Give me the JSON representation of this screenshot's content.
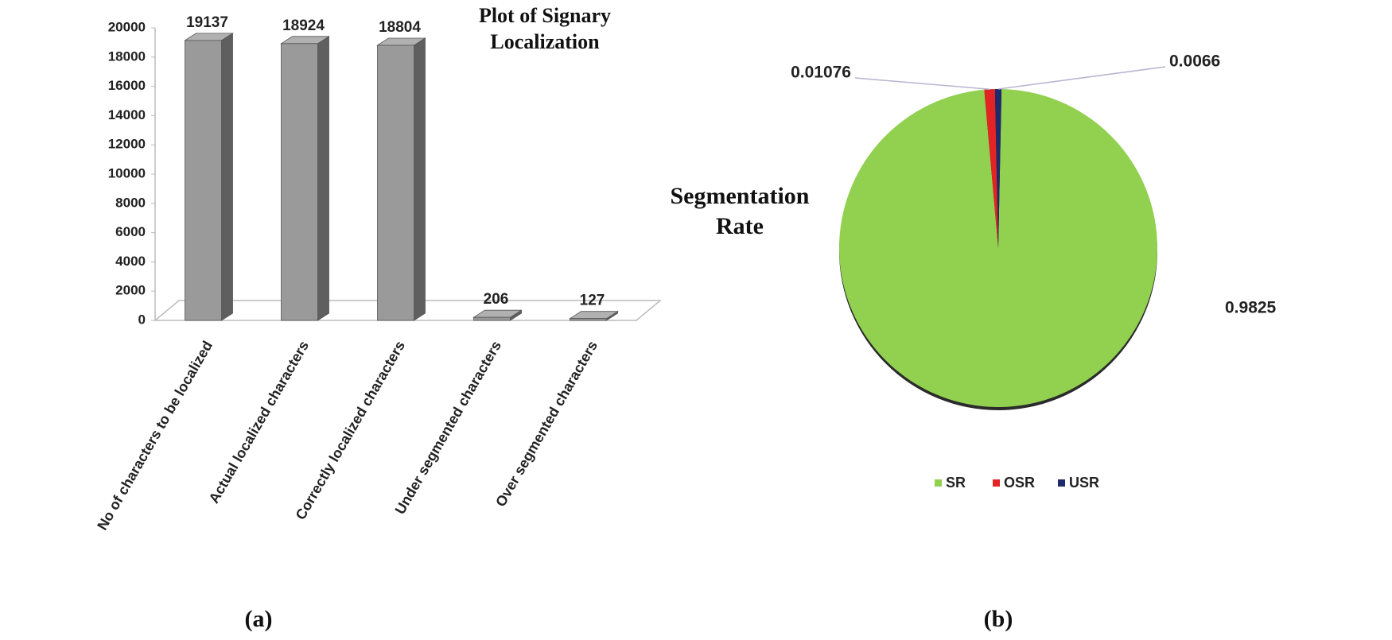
{
  "chart_data": [
    {
      "type": "bar3d",
      "title": "Plot of Signary Localization",
      "caption": "(a)",
      "categories": [
        "No of characters to be localized",
        "Actual localized characters",
        "Correctly localized characters",
        "Under segmented characters",
        "Over segmented characters"
      ],
      "values": [
        19137,
        18924,
        18804,
        206,
        127
      ],
      "color": "#9a9a9a",
      "ylim": [
        0,
        20000
      ],
      "yticks": [
        0,
        2000,
        4000,
        6000,
        8000,
        10000,
        12000,
        14000,
        16000,
        18000,
        20000
      ],
      "grid": false
    },
    {
      "type": "pie",
      "title": "Segmentation Rate",
      "caption": "(b)",
      "categories": [
        "SR",
        "OSR",
        "USR"
      ],
      "values": [
        0.9825,
        0.01076,
        0.0066
      ],
      "colors": [
        "#92d050",
        "#e32424",
        "#1f2a6b"
      ],
      "legend": "bottom"
    }
  ]
}
